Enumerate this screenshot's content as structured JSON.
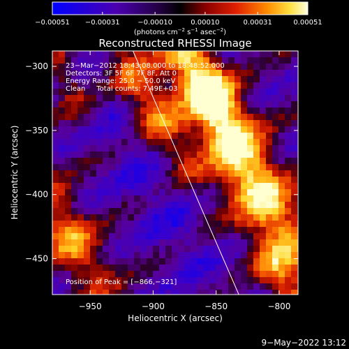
{
  "chart_data": {
    "type": "heatmap",
    "title": "Reconstructed RHESSI Image",
    "xlabel": "Heliocentric X (arcsec)",
    "ylabel": "Heliocentric Y (arcsec)",
    "xlim": [
      -980,
      -785
    ],
    "ylim": [
      -478,
      -288
    ],
    "x_ticks": [
      -950,
      -900,
      -850,
      -800
    ],
    "x_tick_labels": [
      "−950",
      "−900",
      "−850",
      "−800"
    ],
    "y_ticks": [
      -300,
      -350,
      -400,
      -450
    ],
    "y_tick_labels": [
      "−300",
      "−350",
      "−400",
      "−450"
    ],
    "colorbar": {
      "ticks": [
        -0.00051,
        -0.00031,
        -0.0001,
        0.0001,
        0.00031,
        0.00051
      ],
      "tick_labels": [
        "−0.00051",
        "−0.00031",
        "−0.00010",
        "0.00010",
        "0.00031",
        "0.00051"
      ],
      "unit_main": "(photons cm",
      "unit_exp1": "−2",
      "unit_mid1": " s",
      "unit_exp2": "−1",
      "unit_mid2": " asec",
      "unit_exp3": "−2",
      "unit_end": ")",
      "range": [
        -0.00051,
        0.00051
      ]
    },
    "annotations": {
      "time_range": "23−Mar−2012 18:43:08.000 to 18:48:52.000",
      "detectors": "Detectors: 3F 5F 6F 7F 8F, Att 0",
      "energy": "Energy Range: 25.0 − 50.0 keV",
      "clean": "Clean     Total counts: 7.49E+03",
      "peak": "Position of Peak = [−866,−321]"
    },
    "peak": [
      -866,
      -321
    ],
    "limb_line": [
      [
        -916,
        -288
      ],
      [
        -832,
        -478
      ]
    ],
    "bright_regions": [
      {
        "x": [
          -870,
          -800
        ],
        "y": [
          -310,
          -450
        ],
        "level": "high"
      },
      {
        "x": [
          -940,
          -890
        ],
        "y": [
          -320,
          -370
        ],
        "level": "medium"
      },
      {
        "x": [
          -980,
          -950
        ],
        "y": [
          -420,
          -460
        ],
        "level": "medium"
      }
    ]
  },
  "footer": {
    "timestamp": "9−May−2022 13:12"
  }
}
